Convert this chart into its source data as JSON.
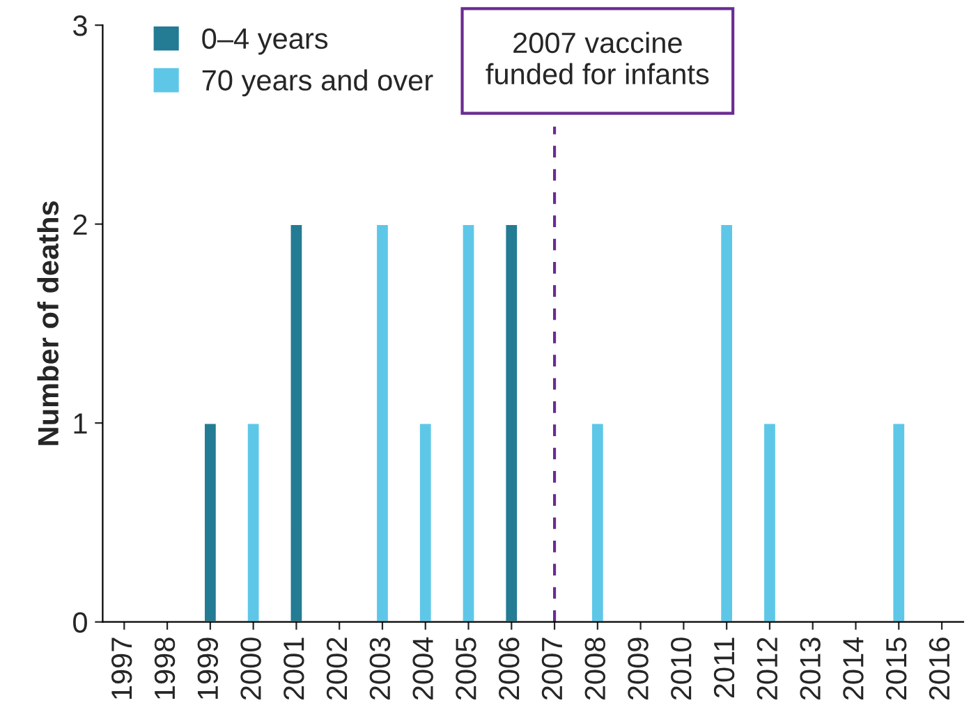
{
  "chart_data": {
    "type": "bar",
    "ylabel": "Number of deaths",
    "categories": [
      "1997",
      "1998",
      "1999",
      "2000",
      "2001",
      "2002",
      "2003",
      "2004",
      "2005",
      "2006",
      "2007",
      "2008",
      "2009",
      "2010",
      "2011",
      "2012",
      "2013",
      "2014",
      "2015",
      "2016"
    ],
    "series": [
      {
        "name": "0–4 years",
        "color": "#237b94",
        "values": [
          null,
          null,
          1,
          null,
          2,
          null,
          null,
          null,
          null,
          2,
          null,
          null,
          null,
          null,
          null,
          null,
          null,
          null,
          null,
          null
        ]
      },
      {
        "name": "70 years and over",
        "color": "#5ec7e8",
        "values": [
          null,
          null,
          null,
          1,
          null,
          null,
          2,
          1,
          2,
          null,
          null,
          1,
          null,
          null,
          2,
          1,
          null,
          null,
          1,
          null
        ]
      }
    ],
    "ylim": [
      0,
      3
    ],
    "yticks": [
      0,
      1,
      2,
      3
    ],
    "grid": false,
    "legend": "top left",
    "ref_lines": [
      {
        "axis": "x",
        "value": "2007",
        "label": "2007 vaccine\nfunded for infants",
        "color": "#6a2c91",
        "line_style": "dashed"
      }
    ]
  }
}
